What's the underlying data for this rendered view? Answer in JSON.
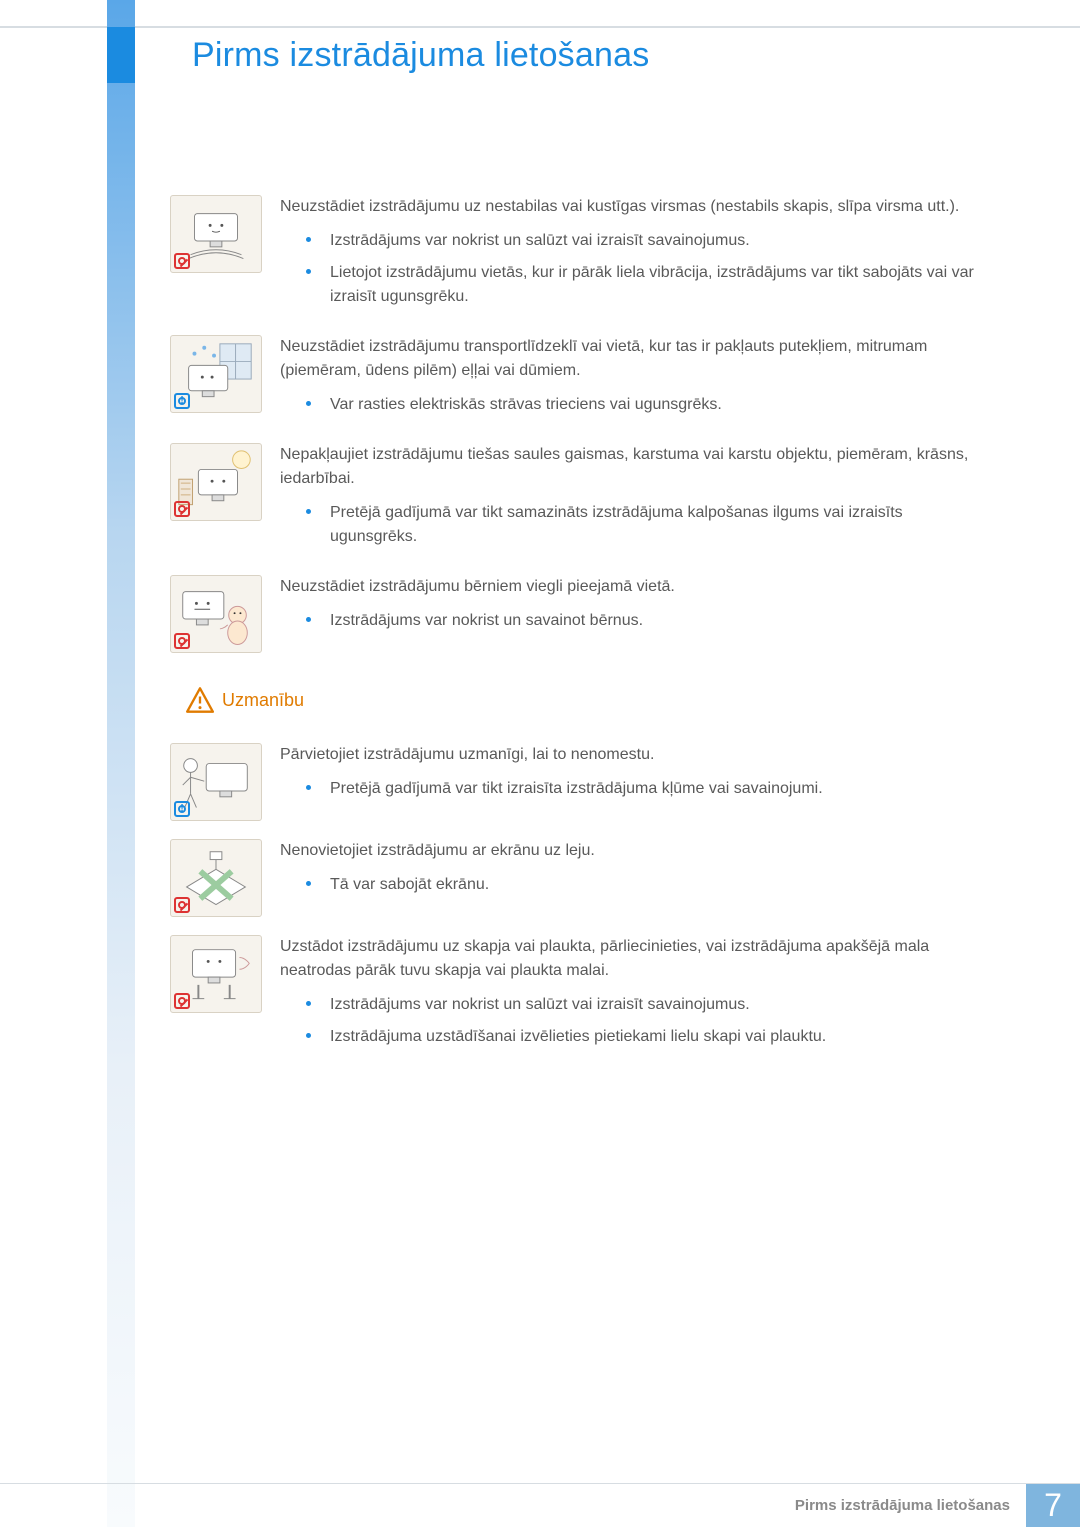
{
  "header": {
    "title": "Pirms izstrādājuma lietošanas"
  },
  "caution_label": "Uzmanību",
  "blocks_a": [
    {
      "badge": "prohibit",
      "lead": "Neuzstādiet izstrādājumu uz nestabilas vai kustīgas virsmas (nestabils skapis, slīpa virsma utt.).",
      "items": [
        "Izstrādājums var nokrist un salūzt vai izraisīt savainojumus.",
        "Lietojot izstrādājumu vietās, kur ir pārāk liela vibrācija, izstrādājums var tikt sabojāts vai var izraisīt ugunsgrēku."
      ]
    },
    {
      "badge": "info",
      "lead": "Neuzstādiet izstrādājumu transportlīdzeklī vai vietā, kur tas ir pakļauts putekļiem, mitrumam (piemēram, ūdens pilēm) eļļai vai dūmiem.",
      "items": [
        "Var rasties elektriskās strāvas trieciens vai ugunsgrēks."
      ]
    },
    {
      "badge": "prohibit",
      "lead": "Nepakļaujiet izstrādājumu tiešas saules gaismas, karstuma vai karstu objektu, piemēram, krāsns, iedarbībai.",
      "items": [
        "Pretējā gadījumā var tikt samazināts izstrādājuma kalpošanas ilgums vai izraisīts ugunsgrēks."
      ]
    },
    {
      "badge": "prohibit",
      "lead": "Neuzstādiet izstrādājumu bērniem viegli pieejamā vietā.",
      "items": [
        "Izstrādājums var nokrist un savainot bērnus."
      ]
    }
  ],
  "blocks_b": [
    {
      "badge": "info",
      "lead": "Pārvietojiet izstrādājumu uzmanīgi, lai to nenomestu.",
      "items": [
        "Pretējā gadījumā var tikt izraisīta izstrādājuma kļūme vai savainojumi."
      ]
    },
    {
      "badge": "prohibit",
      "lead": "Nenovietojiet izstrādājumu ar ekrānu uz leju.",
      "items": [
        "Tā var sabojāt ekrānu."
      ]
    },
    {
      "badge": "prohibit",
      "lead": "Uzstādot izstrādājumu uz skapja vai plaukta, pārliecinieties, vai izstrādājuma apakšējā mala neatrodas pārāk tuvu skapja vai plaukta malai.",
      "items": [
        "Izstrādājums var nokrist un salūzt vai izraisīt savainojumus.",
        "Izstrādājuma uzstādīšanai izvēlieties pietiekami lielu skapi vai plauktu."
      ]
    }
  ],
  "footer": {
    "label": "Pirms izstrādājuma lietošanas",
    "page": "7"
  }
}
